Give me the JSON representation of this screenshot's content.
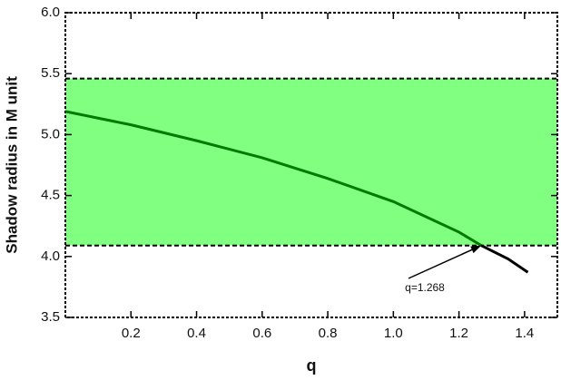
{
  "chart_data": {
    "type": "line",
    "xlabel": "q",
    "ylabel": "Shadow radius in M unit",
    "xlim": [
      0,
      1.5
    ],
    "ylim": [
      3.5,
      6.0
    ],
    "xticks": [
      0.2,
      0.4,
      0.6,
      0.8,
      {
        "value": 1,
        "label": "1.0"
      },
      1.2,
      1.4
    ],
    "yticks": [
      3.5,
      {
        "value": 4,
        "label": "4.0"
      },
      4.5,
      {
        "value": 5,
        "label": "5.0"
      },
      5.5,
      {
        "value": 6,
        "label": "6.0"
      }
    ],
    "band": [
      4.09,
      5.46
    ],
    "band_color": "#80ff80",
    "series": [
      {
        "color": "#007a00",
        "x": [
          0,
          0.2,
          0.4,
          0.6,
          0.8,
          1.0,
          1.2,
          1.268
        ],
        "values": [
          5.19,
          5.08,
          4.95,
          4.81,
          4.64,
          4.45,
          4.2,
          4.09
        ]
      },
      {
        "color": "#000000",
        "x": [
          1.268,
          1.35,
          1.41
        ],
        "values": [
          4.09,
          3.98,
          3.87
        ]
      }
    ],
    "annotation": {
      "text": "q=1.268"
    }
  }
}
